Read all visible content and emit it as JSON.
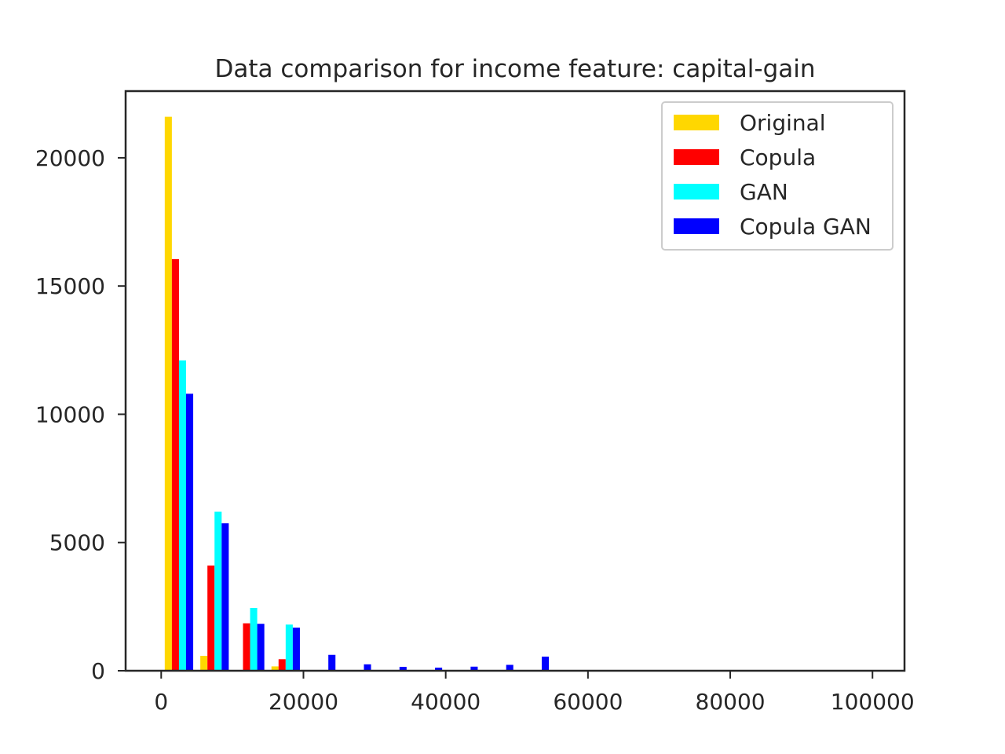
{
  "chart_data": {
    "type": "bar",
    "title": "Data comparison for income feature: capital-gain",
    "xlabel": "",
    "ylabel": "",
    "xlim": [
      -5000,
      104500
    ],
    "ylim": [
      0,
      22600
    ],
    "xticks": [
      0,
      20000,
      40000,
      60000,
      80000,
      100000
    ],
    "xtick_labels": [
      "0",
      "20000",
      "40000",
      "60000",
      "80000",
      "100000"
    ],
    "yticks": [
      0,
      5000,
      10000,
      15000,
      20000
    ],
    "ytick_labels": [
      "0",
      "5000",
      "10000",
      "15000",
      "20000"
    ],
    "legend_position": "top-right",
    "bin_starts": [
      0,
      5000,
      10000,
      15000,
      20000,
      25000,
      30000,
      35000,
      40000,
      45000,
      50000,
      55000,
      60000,
      65000,
      70000,
      75000,
      80000,
      85000,
      90000,
      95000
    ],
    "series": [
      {
        "name": "Original",
        "color": "#FFD700",
        "values": [
          21600,
          580,
          0,
          170,
          0,
          0,
          0,
          0,
          0,
          0,
          0,
          0,
          0,
          0,
          0,
          0,
          0,
          0,
          0,
          0
        ]
      },
      {
        "name": "Copula",
        "color": "#FF0000",
        "values": [
          16050,
          4100,
          1850,
          450,
          0,
          0,
          0,
          0,
          0,
          0,
          0,
          0,
          0,
          0,
          0,
          0,
          0,
          0,
          0,
          0
        ]
      },
      {
        "name": "GAN",
        "color": "#00FFFF",
        "values": [
          12100,
          6200,
          2450,
          1800,
          0,
          0,
          0,
          0,
          0,
          0,
          0,
          0,
          0,
          0,
          0,
          0,
          0,
          0,
          0,
          0
        ]
      },
      {
        "name": "Copula GAN",
        "color": "#0000FF",
        "values": [
          10800,
          5750,
          1830,
          1680,
          620,
          250,
          150,
          120,
          160,
          230,
          550,
          0,
          0,
          0,
          0,
          0,
          0,
          0,
          0,
          0
        ]
      }
    ]
  }
}
